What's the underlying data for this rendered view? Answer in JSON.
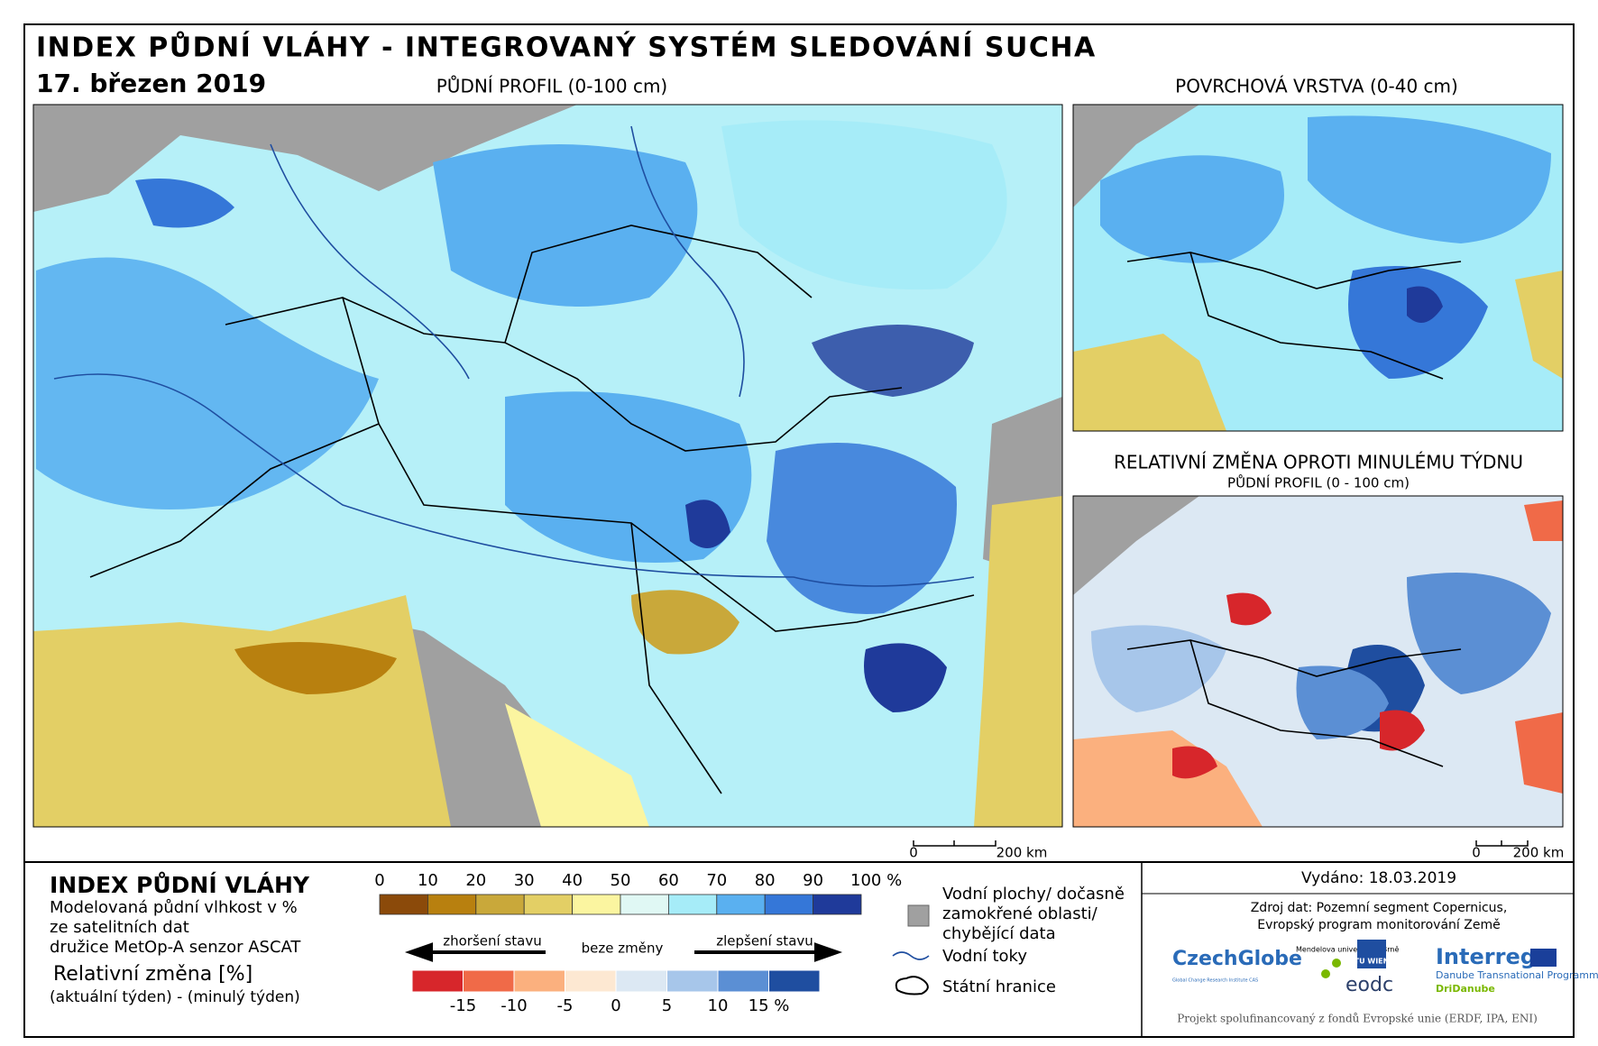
{
  "header": {
    "title": "INDEX PŮDNÍ VLÁHY - INTEGROVANÝ SYSTÉM SLEDOVÁNÍ SUCHA",
    "date": "17. březen 2019"
  },
  "maps": {
    "main": {
      "title": "PŮDNÍ PROFIL (0-100 cm)",
      "scale": [
        "0",
        "200 km"
      ]
    },
    "surface": {
      "title": "POVRCHOVÁ VRSTVA (0-40 cm)"
    },
    "change": {
      "title": "RELATIVNÍ ZMĚNA OPROTI MINULÉMU TÝDNU",
      "subtitle": "PŮDNÍ PROFIL (0 - 100 cm)",
      "scale": [
        "0",
        "200 km"
      ]
    }
  },
  "legend": {
    "title": "INDEX PŮDNÍ VLÁHY",
    "description": [
      "Modelovaná půdní vlhkost v %",
      "ze satelitních dat",
      "družice MetOp-A senzor ASCAT"
    ],
    "moisture_ticks": [
      "0",
      "10",
      "20",
      "30",
      "40",
      "50",
      "60",
      "70",
      "80",
      "90",
      "100 %"
    ],
    "moisture_colors": [
      "#8b4a0a",
      "#b8800f",
      "#c9a83a",
      "#e3cf65",
      "#fbf5a0",
      "#e0f8f4",
      "#a6ecf8",
      "#5ab0f0",
      "#3577d8",
      "#1f3a9a"
    ],
    "change_title": "Relativní změna [%]",
    "change_subtitle": "(aktuální týden) - (minulý týden)",
    "worse": "zhoršení stavu",
    "same": "beze změny",
    "better": "zlepšení stavu",
    "change_ticks": [
      "-15",
      "-10",
      "-5",
      "0",
      "5",
      "10",
      "15 %"
    ],
    "change_colors": [
      "#d7262b",
      "#f06a48",
      "#fbb07e",
      "#fde8d2",
      "#dce8f3",
      "#a7c6ea",
      "#5b8fd4",
      "#1f4ea0"
    ],
    "symbols": {
      "water": [
        "Vodní plochy/ dočasně",
        "zamokřené oblasti/",
        "chybějící data"
      ],
      "rivers": "Vodní toky",
      "borders": "Státní hranice"
    }
  },
  "info": {
    "issued": "Vydáno: 18.03.2019",
    "source": [
      "Zdroj dat: Pozemní segment Copernicus,",
      "Evropský program monitorování Země"
    ],
    "logos": {
      "czechglobe": "CzechGlobe",
      "czechglobe_sub": "Global Change Research Institute CAS",
      "mendel": "Mendelova univerzita v Brně",
      "tuwien": "TU WIEN",
      "eodc": "eodc",
      "interreg": "Interreg",
      "programme": "Danube Transnational Programme",
      "dridanube": "DriDanube"
    },
    "footer": "Projekt spolufinancovaný z fondů Evropské unie (ERDF, IPA, ENI)"
  }
}
